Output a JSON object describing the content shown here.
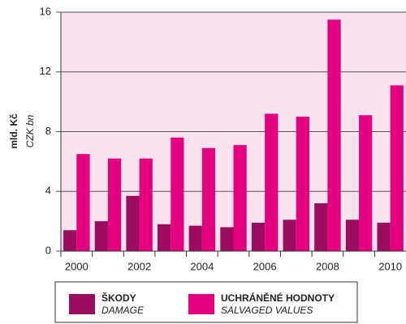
{
  "chart_data": {
    "type": "bar",
    "y_label": "mld. Kč",
    "y_label_en": "CZK bn",
    "categories": [
      "2000",
      null,
      "2002",
      null,
      "2004",
      null,
      "2006",
      null,
      "2008",
      null,
      "2010"
    ],
    "series": [
      {
        "name": "ŠKODY",
        "name_en": "DAMAGE",
        "color": "#9c0c5e",
        "values": [
          1.4,
          2.0,
          3.7,
          1.8,
          1.7,
          1.6,
          1.9,
          2.1,
          3.2,
          2.1,
          1.9
        ]
      },
      {
        "name": "UCHRÁNĚNÉ HODNOTY",
        "name_en": "SALVAGED VALUES",
        "color": "#e4007f",
        "values": [
          6.5,
          6.2,
          6.2,
          7.6,
          6.9,
          7.1,
          9.2,
          9.0,
          15.5,
          9.1,
          11.1
        ]
      }
    ],
    "ylim": [
      0,
      16
    ],
    "yticks": [
      0,
      4,
      8,
      12,
      16
    ],
    "grid": true
  }
}
